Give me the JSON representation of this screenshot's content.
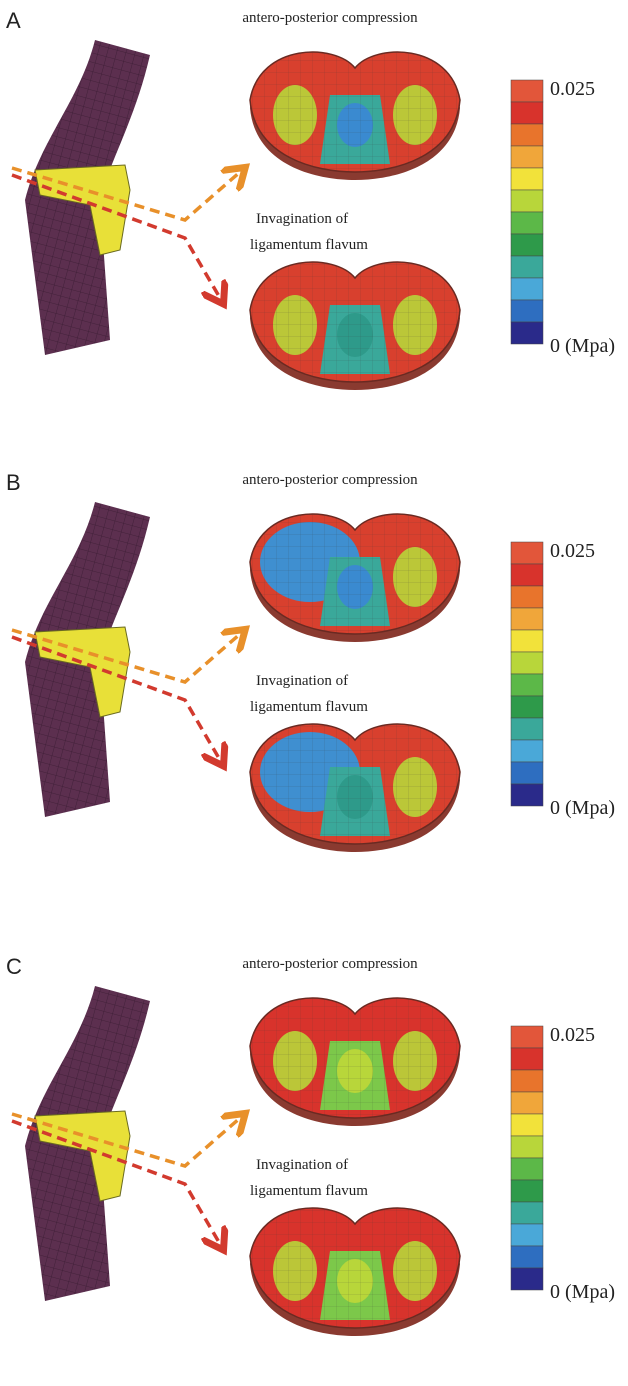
{
  "panels": [
    {
      "label": "A",
      "top_caption": "antero-posterior compression",
      "middle_caption": [
        "Invagination of",
        "ligamentum flavum"
      ],
      "colorbar": {
        "max_label": "0.025",
        "min_label": "0 (Mpa)"
      }
    },
    {
      "label": "B",
      "top_caption": "antero-posterior compression",
      "middle_caption": [
        "Invagination of",
        "ligamentum flavum"
      ],
      "colorbar": {
        "max_label": "0.025",
        "min_label": "0 (Mpa)"
      }
    },
    {
      "label": "C",
      "top_caption": "antero-posterior compression",
      "middle_caption": [
        "Invagination of",
        "ligamentum flavum"
      ],
      "colorbar": {
        "max_label": "0.025",
        "min_label": "0 (Mpa)"
      }
    }
  ]
}
